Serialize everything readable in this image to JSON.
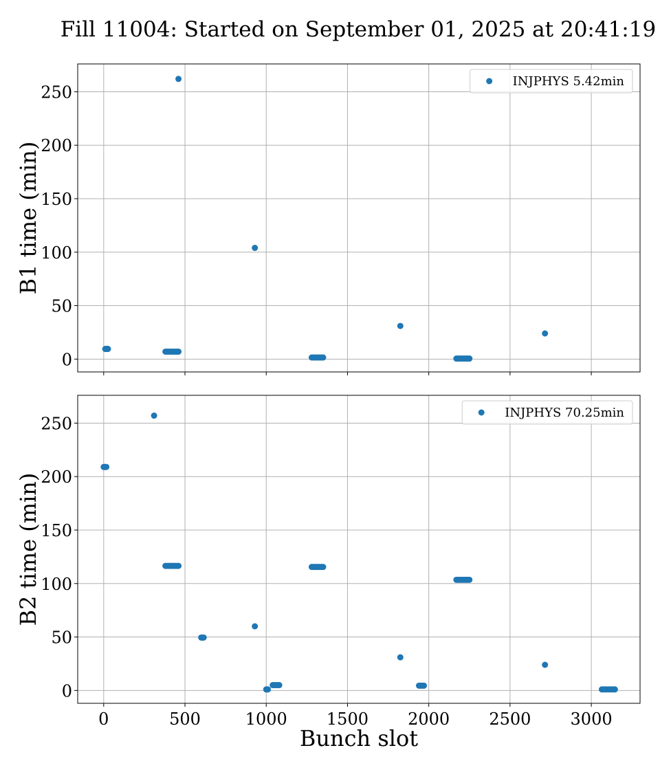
{
  "figure": {
    "title": "Fill 11004: Started on September 01, 2025 at 20:41:19",
    "point_color": "#1f77b4"
  },
  "chart_data": [
    {
      "type": "scatter",
      "id": "b1",
      "ylabel": "B1 time (min)",
      "xlabel": "",
      "xlim": [
        -160,
        3300
      ],
      "ylim": [
        -12,
        276
      ],
      "xticks": [
        0,
        500,
        1000,
        1500,
        2000,
        2500,
        3000
      ],
      "yticks": [
        0,
        50,
        100,
        150,
        200,
        250
      ],
      "show_x_tick_labels": false,
      "grid": true,
      "legend": {
        "position": "top-right"
      },
      "series": [
        {
          "name": "INJPHYS 5.42min",
          "color": "#1f77b4",
          "points": [
            [
              10,
              9.5
            ],
            [
              14,
              9.5
            ],
            [
              18,
              9.5
            ],
            [
              22,
              9.5
            ],
            [
              26,
              9.5
            ],
            [
              380,
              7
            ],
            [
              390,
              7
            ],
            [
              400,
              7
            ],
            [
              410,
              7
            ],
            [
              420,
              7
            ],
            [
              430,
              7
            ],
            [
              440,
              7
            ],
            [
              450,
              7
            ],
            [
              460,
              7
            ],
            [
              460,
              262
            ],
            [
              930,
              104
            ],
            [
              1280,
              1.5
            ],
            [
              1290,
              1.5
            ],
            [
              1300,
              1.5
            ],
            [
              1310,
              1.5
            ],
            [
              1320,
              1.5
            ],
            [
              1330,
              1.5
            ],
            [
              1340,
              1.5
            ],
            [
              1350,
              1.5
            ],
            [
              1825,
              31
            ],
            [
              2170,
              0.5
            ],
            [
              2180,
              0.5
            ],
            [
              2190,
              0.5
            ],
            [
              2200,
              0.5
            ],
            [
              2210,
              0.5
            ],
            [
              2220,
              0.5
            ],
            [
              2230,
              0.5
            ],
            [
              2240,
              0.5
            ],
            [
              2250,
              0.5
            ],
            [
              2715,
              24
            ]
          ]
        }
      ]
    },
    {
      "type": "scatter",
      "id": "b2",
      "ylabel": "B2 time (min)",
      "xlabel": "Bunch slot",
      "xlim": [
        -160,
        3300
      ],
      "ylim": [
        -12,
        276
      ],
      "xticks": [
        0,
        500,
        1000,
        1500,
        2000,
        2500,
        3000
      ],
      "yticks": [
        0,
        50,
        100,
        150,
        200,
        250
      ],
      "show_x_tick_labels": true,
      "grid": true,
      "legend": {
        "position": "top-right"
      },
      "series": [
        {
          "name": "INJPHYS 70.25min",
          "color": "#1f77b4",
          "points": [
            [
              0,
              209
            ],
            [
              4,
              209
            ],
            [
              8,
              209
            ],
            [
              12,
              209
            ],
            [
              16,
              209
            ],
            [
              310,
              257
            ],
            [
              380,
              116.5
            ],
            [
              390,
              116.5
            ],
            [
              400,
              116.5
            ],
            [
              410,
              116.5
            ],
            [
              420,
              116.5
            ],
            [
              430,
              116.5
            ],
            [
              440,
              116.5
            ],
            [
              450,
              116.5
            ],
            [
              460,
              116.5
            ],
            [
              600,
              49.5
            ],
            [
              605,
              49.5
            ],
            [
              610,
              49.5
            ],
            [
              615,
              49.5
            ],
            [
              930,
              60
            ],
            [
              1000,
              1
            ],
            [
              1005,
              1
            ],
            [
              1010,
              1
            ],
            [
              1040,
              5
            ],
            [
              1050,
              5
            ],
            [
              1060,
              5
            ],
            [
              1070,
              5
            ],
            [
              1080,
              5
            ],
            [
              1280,
              115.5
            ],
            [
              1290,
              115.5
            ],
            [
              1300,
              115.5
            ],
            [
              1310,
              115.5
            ],
            [
              1320,
              115.5
            ],
            [
              1330,
              115.5
            ],
            [
              1340,
              115.5
            ],
            [
              1350,
              115.5
            ],
            [
              1825,
              31
            ],
            [
              1940,
              4.5
            ],
            [
              1950,
              4.5
            ],
            [
              1960,
              4.5
            ],
            [
              1970,
              4.5
            ],
            [
              2170,
              103.5
            ],
            [
              2180,
              103.5
            ],
            [
              2190,
              103.5
            ],
            [
              2200,
              103.5
            ],
            [
              2210,
              103.5
            ],
            [
              2220,
              103.5
            ],
            [
              2230,
              103.5
            ],
            [
              2240,
              103.5
            ],
            [
              2250,
              103.5
            ],
            [
              2715,
              24
            ],
            [
              3065,
              1
            ],
            [
              3075,
              1
            ],
            [
              3085,
              1
            ],
            [
              3095,
              1
            ],
            [
              3105,
              1
            ],
            [
              3115,
              1
            ],
            [
              3125,
              1
            ],
            [
              3135,
              1
            ],
            [
              3145,
              1
            ]
          ]
        }
      ]
    }
  ]
}
